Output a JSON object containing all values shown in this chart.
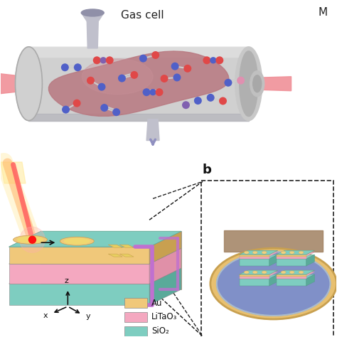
{
  "bg_color": "#ffffff",
  "gas_cell_label": "Gas cell",
  "top_right_label": "M",
  "label_b": "b",
  "legend_items": [
    {
      "label": "Au",
      "color": "#f0c87a"
    },
    {
      "label": "LiTaO₃",
      "color": "#f4a8c0"
    },
    {
      "label": "SiO₂",
      "color": "#7ecdc0"
    }
  ],
  "beam_color_left": "#f09098",
  "beam_color_right": "#f09098",
  "cylinder_body_color": "#d0d0d0",
  "cylinder_top_color": "#e0e0e0",
  "cylinder_shadow_color": "#b0b0b8",
  "cylinder_inner_color": "#b87880",
  "cylinder_inner_light": "#c89098",
  "molecule_colors": {
    "red": "#e04848",
    "blue": "#5060c8",
    "purple": "#8060b0",
    "pink": "#e090b0",
    "white": "#f0f0f0"
  },
  "arrow_color": "#8090c0",
  "chip_au_color": "#f0c87a",
  "chip_au_dark": "#c8a050",
  "chip_litao_color": "#f4a8c0",
  "chip_sio2_color": "#7ecdc0",
  "chip_sio2_dark": "#5aaa9a",
  "chip_top_color": "#7ecdc0",
  "pad_color": "#f0d080",
  "pad_inner_color": "#e8c060",
  "bracket_color": "#c070d0",
  "wafer_blue_color": "#8090c8",
  "wafer_rim_color": "#e8c070",
  "wafer_rim_dark": "#c8a050",
  "wafer_back_color": "#a08060",
  "axes_color": "#111111",
  "laser_yellow": "#ffe890",
  "laser_orange": "#ffb060",
  "laser_red": "#ff6060",
  "laser_glow": "#ffb0b0",
  "dashed_line_color": "#222222",
  "inlet_color": "#c0c0cc",
  "inlet_dark": "#9090a8",
  "outlet_arrow_color": "#9090c0"
}
